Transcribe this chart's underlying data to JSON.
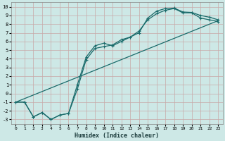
{
  "xlabel": "Humidex (Indice chaleur)",
  "bg_color": "#cde8e6",
  "grid_color": "#c8a8a8",
  "line_color": "#1a6b6b",
  "xlim": [
    -0.5,
    23.5
  ],
  "ylim": [
    -3.5,
    10.5
  ],
  "xticks": [
    0,
    1,
    2,
    3,
    4,
    5,
    6,
    7,
    8,
    9,
    10,
    11,
    12,
    13,
    14,
    15,
    16,
    17,
    18,
    19,
    20,
    21,
    22,
    23
  ],
  "yticks": [
    -3,
    -2,
    -1,
    0,
    1,
    2,
    3,
    4,
    5,
    6,
    7,
    8,
    9,
    10
  ],
  "line1_x": [
    0,
    1,
    2,
    3,
    4,
    5,
    6,
    7,
    8,
    9,
    10,
    11,
    12,
    13,
    14,
    15,
    16,
    17,
    18,
    19,
    20,
    21,
    22,
    23
  ],
  "line1_y": [
    -1.0,
    -1.0,
    -2.7,
    -2.2,
    -3.0,
    -2.5,
    -2.3,
    1.0,
    4.2,
    5.5,
    5.8,
    5.5,
    6.0,
    6.5,
    7.0,
    8.7,
    9.5,
    9.8,
    9.85,
    9.4,
    9.35,
    9.0,
    8.8,
    8.5
  ],
  "line2_x": [
    0,
    1,
    2,
    3,
    4,
    5,
    6,
    7,
    8,
    9,
    10,
    11,
    12,
    13,
    14,
    15,
    16,
    17,
    18,
    19,
    20,
    21,
    22,
    23
  ],
  "line2_y": [
    -1.0,
    -1.0,
    -2.7,
    -2.2,
    -3.0,
    -2.5,
    -2.3,
    0.5,
    3.9,
    5.2,
    5.4,
    5.6,
    6.2,
    6.5,
    7.2,
    8.5,
    9.2,
    9.6,
    9.8,
    9.3,
    9.3,
    8.7,
    8.5,
    8.3
  ],
  "line3_x": [
    0,
    23
  ],
  "line3_y": [
    -1.0,
    8.4
  ]
}
